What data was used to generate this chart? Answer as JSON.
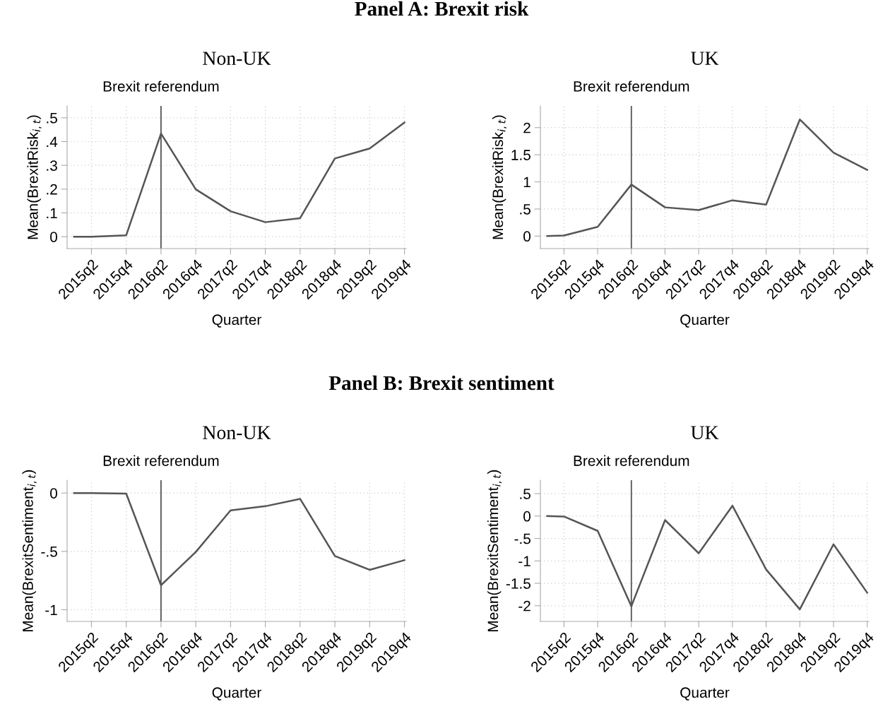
{
  "chart_data": [
    {
      "type": "line",
      "title": "Non-UK",
      "annotations": [
        "Panel A: Brexit risk"
      ],
      "xlabel": "Quarter",
      "ylabel": "Mean(BrexitRisk$_{i,t}$)",
      "categories": [
        null,
        "2015q2",
        null,
        "2015q4",
        null,
        "2016q2",
        null,
        "2016q4",
        null,
        "2017q2",
        null,
        "2017q4",
        null,
        "2018q2",
        null,
        "2018q4",
        null,
        "2019q2",
        null,
        "2019q4"
      ],
      "series": [
        {
          "color": "#555555",
          "values": [
            0,
            0.0,
            null,
            0.006,
            null,
            0.434,
            null,
            0.199,
            null,
            0.107,
            null,
            0.061,
            null,
            0.078,
            null,
            0.329,
            null,
            0.371,
            null,
            0.48
          ]
        }
      ],
      "ylim": [
        -0.05,
        0.55
      ],
      "yticks": [
        0,
        {
          "value": 0.1,
          "label": ".1"
        },
        {
          "value": 0.2,
          "label": ".2"
        },
        {
          "value": 0.3,
          "label": ".3"
        },
        {
          "value": 0.4,
          "label": ".4"
        },
        {
          "value": 0.5,
          "label": ".5"
        }
      ],
      "ref_lines": [
        {
          "axis": "x",
          "value": "2016q2",
          "label": "Brexit referendum",
          "color": "#555555"
        }
      ],
      "grid": true,
      "line_style": "solid",
      "marker": "none"
    },
    {
      "type": "line",
      "title": "UK",
      "xlabel": "Quarter",
      "ylabel": "Mean(BrexitRisk$_{i,t}$)",
      "categories": [
        null,
        "2015q2",
        null,
        "2015q4",
        null,
        "2016q2",
        null,
        "2016q4",
        null,
        "2017q2",
        null,
        "2017q4",
        null,
        "2018q2",
        null,
        "2018q4",
        null,
        "2019q2",
        null,
        "2019q4"
      ],
      "series": [
        {
          "color": "#555555",
          "values": [
            0,
            0.01,
            null,
            0.17,
            null,
            0.95,
            null,
            0.53,
            null,
            0.48,
            null,
            0.66,
            null,
            0.58,
            null,
            2.15,
            null,
            1.54,
            null,
            1.22
          ]
        }
      ],
      "ylim": [
        -0.23,
        2.4
      ],
      "yticks": [
        0,
        {
          "value": 0.5,
          "label": ".5"
        },
        1,
        1.5,
        2
      ],
      "ref_lines": [
        {
          "axis": "x",
          "value": "2016q2",
          "label": "Brexit referendum",
          "color": "#555555"
        }
      ],
      "grid": true,
      "line_style": "solid",
      "marker": "none"
    },
    {
      "type": "line",
      "title": "Non-UK",
      "annotations": [
        "Panel B: Brexit sentiment"
      ],
      "xlabel": "Quarter",
      "ylabel": "Mean(BrexitSentiment$_{i,t}$)",
      "categories": [
        null,
        "2015q2",
        null,
        "2015q4",
        null,
        "2016q2",
        null,
        "2016q4",
        null,
        "2017q2",
        null,
        "2017q4",
        null,
        "2018q2",
        null,
        "2018q4",
        null,
        "2019q2",
        null,
        "2019q4"
      ],
      "series": [
        {
          "color": "#555555",
          "values": [
            0,
            0.0,
            null,
            -0.005,
            null,
            -0.79,
            null,
            -0.505,
            null,
            -0.149,
            null,
            -0.113,
            null,
            -0.05,
            null,
            -0.54,
            null,
            -0.658,
            null,
            -0.575
          ]
        }
      ],
      "ylim": [
        -1.1,
        0.11
      ],
      "yticks": [
        {
          "value": -1,
          "label": "-1"
        },
        {
          "value": -0.5,
          "label": "-.5"
        },
        0
      ],
      "ref_lines": [
        {
          "axis": "x",
          "value": "2016q2",
          "label": "Brexit referendum",
          "color": "#555555"
        }
      ],
      "grid": true,
      "line_style": "solid",
      "marker": "none"
    },
    {
      "type": "line",
      "title": "UK",
      "xlabel": "Quarter",
      "ylabel": "Mean(BrexitSentiment$_{i,t}$)",
      "categories": [
        null,
        "2015q2",
        null,
        "2015q4",
        null,
        "2016q2",
        null,
        "2016q4",
        null,
        "2017q2",
        null,
        "2017q4",
        null,
        "2018q2",
        null,
        "2018q4",
        null,
        "2019q2",
        null,
        "2019q4"
      ],
      "series": [
        {
          "color": "#555555",
          "values": [
            0,
            -0.01,
            null,
            -0.33,
            null,
            -2.01,
            null,
            -0.09,
            null,
            -0.83,
            null,
            0.23,
            null,
            -1.19,
            null,
            -2.08,
            null,
            -0.63,
            null,
            -1.71
          ]
        }
      ],
      "ylim": [
        -2.35,
        0.8
      ],
      "yticks": [
        {
          "value": -2,
          "label": "-2"
        },
        {
          "value": -1.5,
          "label": "-1.5"
        },
        {
          "value": -1,
          "label": "-1"
        },
        {
          "value": -0.5,
          "label": "-.5"
        },
        0,
        {
          "value": 0.5,
          "label": ".5"
        }
      ],
      "ref_lines": [
        {
          "axis": "x",
          "value": "2016q2",
          "label": "Brexit referendum",
          "color": "#555555"
        }
      ],
      "grid": true,
      "line_style": "solid",
      "marker": "none"
    }
  ]
}
